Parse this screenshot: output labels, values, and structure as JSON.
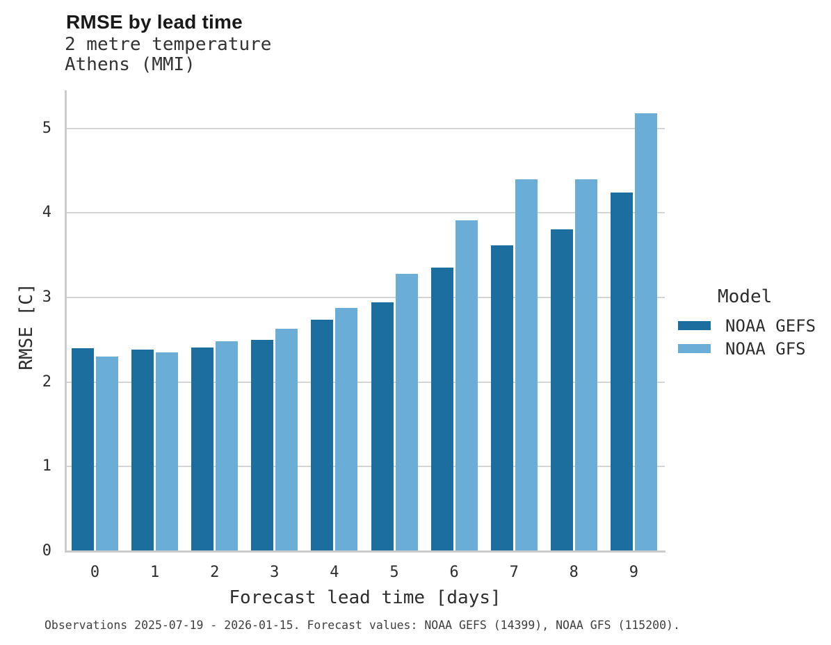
{
  "header": {
    "title": "RMSE by lead time",
    "subtitle_line1": "2 metre temperature",
    "subtitle_line2": "Athens (MMI)"
  },
  "chart_data": {
    "type": "bar",
    "title": "RMSE by lead time",
    "subtitle": [
      "2 metre temperature",
      "Athens (MMI)"
    ],
    "categories": [
      "0",
      "1",
      "2",
      "3",
      "4",
      "5",
      "6",
      "7",
      "8",
      "9"
    ],
    "series": [
      {
        "name": "NOAA GEFS",
        "color": "#1c6e9e",
        "values": [
          2.4,
          2.38,
          2.41,
          2.5,
          2.74,
          2.94,
          3.35,
          3.62,
          3.81,
          4.24
        ]
      },
      {
        "name": "NOAA GFS",
        "color": "#6aaed8",
        "values": [
          2.3,
          2.35,
          2.48,
          2.63,
          2.88,
          3.28,
          3.91,
          4.4,
          4.4,
          5.18
        ]
      }
    ],
    "xlabel": "Forecast lead time [days]",
    "ylabel": "RMSE [C]",
    "ylim": [
      0,
      5.45
    ],
    "yticks": [
      0,
      1,
      2,
      3,
      4,
      5
    ],
    "grid": true,
    "legend_title": "Model",
    "legend_position": "right-of-plot"
  },
  "legend": {
    "title": "Model",
    "items": [
      {
        "label": "NOAA GEFS",
        "color": "#1c6e9e"
      },
      {
        "label": "NOAA GFS",
        "color": "#6aaed8"
      }
    ]
  },
  "footer": {
    "caption": "Observations 2025-07-19 - 2026-01-15. Forecast values: NOAA GEFS (14399), NOAA GFS (115200)."
  },
  "colors": {
    "series_dark": "#1c6e9e",
    "series_light": "#6aaed8",
    "gridline": "#d4d4d4",
    "spine": "#cbcbcb",
    "background": "#ffffff",
    "title_text": "#191919",
    "body_text": "#2d2d2d",
    "footer_text": "#3f3f3f"
  }
}
